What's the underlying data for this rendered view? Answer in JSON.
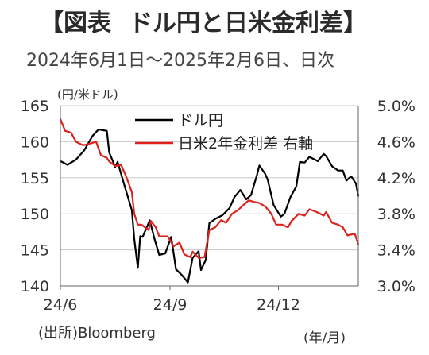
{
  "header": {
    "title_part1": "【図表",
    "title_part2": "ドル円と日米金利差】",
    "subtitle": "2024年6月1日～2025年2月6日、日次"
  },
  "chart_data": {
    "type": "line",
    "title": "ドル円と日米金利差",
    "left_axis": {
      "label": "(円/米ドル)",
      "ylim": [
        140,
        165
      ],
      "ticks": [
        140,
        145,
        150,
        155,
        160,
        165
      ],
      "tick_labels": [
        "140",
        "145",
        "150",
        "155",
        "160",
        "165"
      ]
    },
    "right_axis": {
      "ylim": [
        3.0,
        5.0
      ],
      "ticks": [
        3.0,
        3.4,
        3.8,
        4.2,
        4.6,
        5.0
      ],
      "tick_labels": [
        "3.0%",
        "3.4%",
        "3.8%",
        "4.2%",
        "4.6%",
        "5.0%"
      ]
    },
    "x_axis": {
      "ticks": [
        "2024-06-01",
        "2024-09-01",
        "2024-12-01"
      ],
      "tick_labels": [
        "24/6",
        "24/9",
        "24/12"
      ],
      "label": "(年/月)",
      "range": [
        "2024-06-01",
        "2025-02-06"
      ]
    },
    "grid": "horizontal",
    "legend_position": "top-center",
    "series": [
      {
        "name": "ドル円",
        "axis": "left",
        "color": "#000000",
        "points": [
          [
            "2024-06-01",
            157.3
          ],
          [
            "2024-06-07",
            156.8
          ],
          [
            "2024-06-14",
            157.5
          ],
          [
            "2024-06-21",
            158.8
          ],
          [
            "2024-06-28",
            160.8
          ],
          [
            "2024-07-03",
            161.7
          ],
          [
            "2024-07-10",
            161.5
          ],
          [
            "2024-07-12",
            158.5
          ],
          [
            "2024-07-17",
            156.5
          ],
          [
            "2024-07-19",
            157.2
          ],
          [
            "2024-07-25",
            153.8
          ],
          [
            "2024-07-31",
            150.5
          ],
          [
            "2024-08-02",
            146.5
          ],
          [
            "2024-08-05",
            142.5
          ],
          [
            "2024-08-07",
            146.9
          ],
          [
            "2024-08-09",
            146.8
          ],
          [
            "2024-08-15",
            149.1
          ],
          [
            "2024-08-19",
            146.5
          ],
          [
            "2024-08-23",
            144.3
          ],
          [
            "2024-08-28",
            144.5
          ],
          [
            "2024-09-02",
            146.8
          ],
          [
            "2024-09-06",
            142.3
          ],
          [
            "2024-09-11",
            141.5
          ],
          [
            "2024-09-16",
            140.5
          ],
          [
            "2024-09-20",
            143.9
          ],
          [
            "2024-09-25",
            144.8
          ],
          [
            "2024-09-27",
            142.2
          ],
          [
            "2024-10-01",
            143.6
          ],
          [
            "2024-10-04",
            148.7
          ],
          [
            "2024-10-09",
            149.3
          ],
          [
            "2024-10-15",
            149.8
          ],
          [
            "2024-10-21",
            150.8
          ],
          [
            "2024-10-25",
            152.3
          ],
          [
            "2024-10-30",
            153.3
          ],
          [
            "2024-11-04",
            152.0
          ],
          [
            "2024-11-08",
            152.6
          ],
          [
            "2024-11-13",
            155.4
          ],
          [
            "2024-11-15",
            156.7
          ],
          [
            "2024-11-20",
            155.5
          ],
          [
            "2024-11-22",
            154.7
          ],
          [
            "2024-11-27",
            151.2
          ],
          [
            "2024-12-03",
            149.6
          ],
          [
            "2024-12-06",
            150.0
          ],
          [
            "2024-12-11",
            152.3
          ],
          [
            "2024-12-16",
            153.8
          ],
          [
            "2024-12-19",
            157.2
          ],
          [
            "2024-12-23",
            157.1
          ],
          [
            "2024-12-27",
            157.9
          ],
          [
            "2025-01-03",
            157.3
          ],
          [
            "2025-01-08",
            158.3
          ],
          [
            "2025-01-10",
            158.0
          ],
          [
            "2025-01-15",
            156.6
          ],
          [
            "2025-01-20",
            156.0
          ],
          [
            "2025-01-24",
            156.0
          ],
          [
            "2025-01-27",
            154.6
          ],
          [
            "2025-01-31",
            155.2
          ],
          [
            "2025-02-04",
            154.2
          ],
          [
            "2025-02-06",
            152.5
          ]
        ]
      },
      {
        "name": "日米2年金利差 右軸",
        "axis": "right",
        "color": "#e0201a",
        "points": [
          [
            "2024-06-01",
            4.85
          ],
          [
            "2024-06-05",
            4.72
          ],
          [
            "2024-06-10",
            4.7
          ],
          [
            "2024-06-14",
            4.6
          ],
          [
            "2024-06-20",
            4.56
          ],
          [
            "2024-06-26",
            4.58
          ],
          [
            "2024-07-01",
            4.6
          ],
          [
            "2024-07-05",
            4.45
          ],
          [
            "2024-07-10",
            4.42
          ],
          [
            "2024-07-12",
            4.38
          ],
          [
            "2024-07-17",
            4.33
          ],
          [
            "2024-07-22",
            4.34
          ],
          [
            "2024-07-26",
            4.22
          ],
          [
            "2024-07-31",
            4.04
          ],
          [
            "2024-08-02",
            3.8
          ],
          [
            "2024-08-05",
            3.68
          ],
          [
            "2024-08-08",
            3.68
          ],
          [
            "2024-08-14",
            3.62
          ],
          [
            "2024-08-16",
            3.72
          ],
          [
            "2024-08-20",
            3.65
          ],
          [
            "2024-08-23",
            3.55
          ],
          [
            "2024-08-30",
            3.55
          ],
          [
            "2024-09-04",
            3.44
          ],
          [
            "2024-09-09",
            3.48
          ],
          [
            "2024-09-13",
            3.35
          ],
          [
            "2024-09-18",
            3.32
          ],
          [
            "2024-09-20",
            3.38
          ],
          [
            "2024-09-25",
            3.31
          ],
          [
            "2024-09-30",
            3.32
          ],
          [
            "2024-10-04",
            3.62
          ],
          [
            "2024-10-09",
            3.65
          ],
          [
            "2024-10-14",
            3.73
          ],
          [
            "2024-10-18",
            3.7
          ],
          [
            "2024-10-23",
            3.8
          ],
          [
            "2024-10-28",
            3.84
          ],
          [
            "2024-11-01",
            3.89
          ],
          [
            "2024-11-06",
            3.95
          ],
          [
            "2024-11-11",
            3.93
          ],
          [
            "2024-11-15",
            3.92
          ],
          [
            "2024-11-20",
            3.88
          ],
          [
            "2024-11-25",
            3.8
          ],
          [
            "2024-11-29",
            3.68
          ],
          [
            "2024-12-04",
            3.68
          ],
          [
            "2024-12-09",
            3.65
          ],
          [
            "2024-12-12",
            3.72
          ],
          [
            "2024-12-18",
            3.8
          ],
          [
            "2024-12-23",
            3.78
          ],
          [
            "2024-12-27",
            3.85
          ],
          [
            "2025-01-02",
            3.82
          ],
          [
            "2025-01-08",
            3.78
          ],
          [
            "2025-01-10",
            3.82
          ],
          [
            "2025-01-15",
            3.7
          ],
          [
            "2025-01-20",
            3.68
          ],
          [
            "2025-01-24",
            3.65
          ],
          [
            "2025-01-28",
            3.56
          ],
          [
            "2025-02-03",
            3.58
          ],
          [
            "2025-02-06",
            3.46
          ]
        ]
      }
    ]
  },
  "footer": {
    "source": "(出所)Bloomberg",
    "x_unit": "(年/月)"
  }
}
